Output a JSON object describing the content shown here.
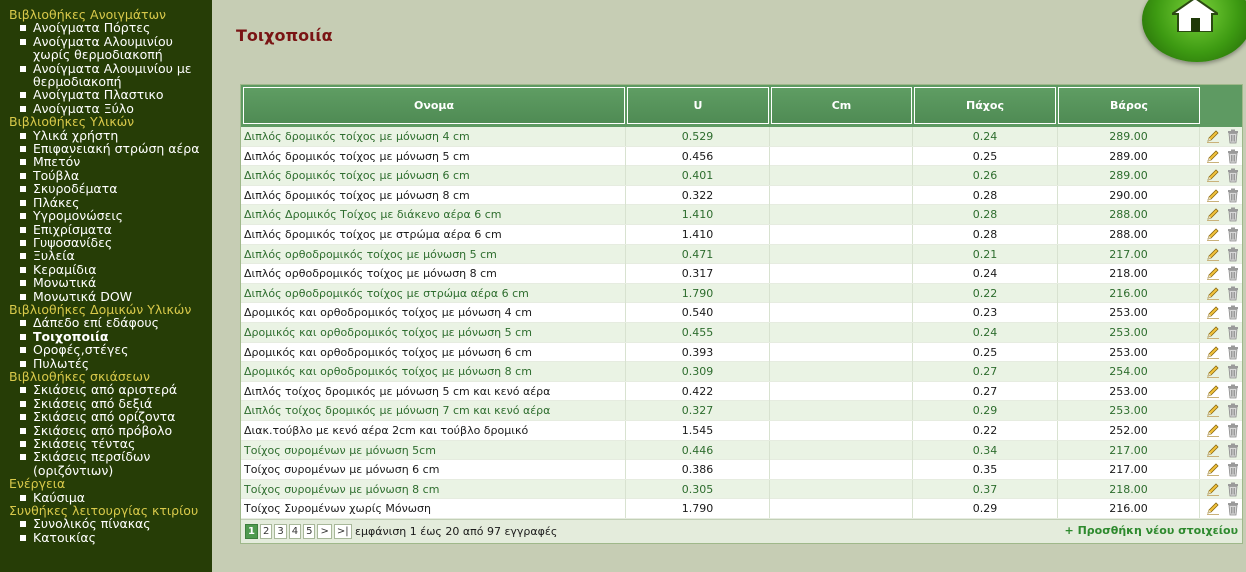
{
  "sidebar": {
    "s0": "Βιβλιοθήκες Ανοιγμάτων",
    "s0_items": [
      "Ανοίγματα Πόρτες",
      "Ανοίγματα Αλουμινίου χωρίς θερμοδιακοπή",
      "Ανοίγματα Αλουμινίου με θερμοδιακοπή",
      "Ανοίγματα Πλαστικο",
      "Ανοίγματα Ξύλο"
    ],
    "s1": "Βιβλιοθήκες Υλικών",
    "s1_items": [
      "Υλικά χρήστη",
      "Επιφανειακή στρώση αέρα",
      "Μπετόν",
      "Τούβλα",
      "Σκυροδέματα",
      "Πλάκες",
      "Υγρομονώσεις",
      "Επιχρίσματα",
      "Γυψοσανίδες",
      "Ξυλεία",
      "Κεραμίδια",
      "Μονωτικά",
      "Μονωτικά DOW"
    ],
    "s2": "Βιβλιοθήκες Δομικών Υλικών",
    "s2_items": [
      "Δάπεδο επί εδάφους",
      "Τοιχοποιία",
      "Οροφές,στέγες",
      "Πυλωτές"
    ],
    "s3": "Βιβλιοθήκες σκιάσεων",
    "s3_items": [
      "Σκιάσεις από αριστερά",
      "Σκιάσεις από δεξιά",
      "Σκιάσεις από ορίζοντα",
      "Σκιάσεις από πρόβολο",
      "Σκιάσεις τέντας",
      "Σκιάσεις περσίδων (οριζόντιων)"
    ],
    "s4": "Ενέργεια",
    "s4_items": [
      "Καύσιμα"
    ],
    "s5": "Συνθήκες λειτουργίας κτιρίου",
    "s5_items": [
      "Συνολικός πίνακας",
      "Κατοικίας"
    ]
  },
  "page": {
    "title": "Τοιχοποιία"
  },
  "grid": {
    "headers": {
      "name": "Ονομα",
      "u": "U",
      "cm": "Cm",
      "pax": "Πάχος",
      "var": "Βάρος"
    },
    "rows": [
      [
        "Διπλός δρομικός τοίχος με μόνωση 4 cm",
        "0.529",
        "",
        "0.24",
        "289.00"
      ],
      [
        "Διπλός δρομικός τοίχος με μόνωση 5 cm",
        "0.456",
        "",
        "0.25",
        "289.00"
      ],
      [
        "Διπλός δρομικός τοίχος με μόνωση 6 cm",
        "0.401",
        "",
        "0.26",
        "289.00"
      ],
      [
        "Διπλός δρομικός τοίχος με μόνωση 8 cm",
        "0.322",
        "",
        "0.28",
        "290.00"
      ],
      [
        "Διπλός Δρομικός Τοίχος με διάκενο αέρα 6 cm",
        "1.410",
        "",
        "0.28",
        "288.00"
      ],
      [
        "Διπλός δρομικός τοίχος με στρώμα αέρα 6 cm",
        "1.410",
        "",
        "0.28",
        "288.00"
      ],
      [
        "Διπλός ορθοδρομικός τοίχος με μόνωση 5 cm",
        "0.471",
        "",
        "0.21",
        "217.00"
      ],
      [
        "Διπλός ορθοδρομικός τοίχος με μόνωση 8 cm",
        "0.317",
        "",
        "0.24",
        "218.00"
      ],
      [
        "Διπλός ορθοδρομικός τοίχος με στρώμα αέρα 6 cm",
        "1.790",
        "",
        "0.22",
        "216.00"
      ],
      [
        "Δρομικός και ορθοδρομικός τοίχος με μόνωση 4 cm",
        "0.540",
        "",
        "0.23",
        "253.00"
      ],
      [
        "Δρομικός και ορθοδρομικός τοίχος με μόνωση 5 cm",
        "0.455",
        "",
        "0.24",
        "253.00"
      ],
      [
        "Δρομικός και ορθοδρομικός τοίχος με μόνωση 6 cm",
        "0.393",
        "",
        "0.25",
        "253.00"
      ],
      [
        "Δρομικός και ορθοδρομικός τοίχος με μόνωση 8 cm",
        "0.309",
        "",
        "0.27",
        "254.00"
      ],
      [
        "Διπλός τοίχος δρομικός με μόνωση 5 cm και κενό αέρα",
        "0.422",
        "",
        "0.27",
        "253.00"
      ],
      [
        "Διπλός τοίχος δρομικός με μόνωση 7 cm και κενό αέρα",
        "0.327",
        "",
        "0.29",
        "253.00"
      ],
      [
        "Διακ.τούβλο με κενό αέρα 2cm και τούβλο δρομικό",
        "1.545",
        "",
        "0.22",
        "252.00"
      ],
      [
        "Τοίχος συρομένων με μόνωση 5cm",
        "0.446",
        "",
        "0.34",
        "217.00"
      ],
      [
        "Τοίχος συρομένων με μόνωση 6 cm",
        "0.386",
        "",
        "0.35",
        "217.00"
      ],
      [
        "Τοίχος συρομένων με μόνωση 8 cm",
        "0.305",
        "",
        "0.37",
        "218.00"
      ],
      [
        "Τοίχος Συρομένων χωρίς Μόνωση",
        "1.790",
        "",
        "0.29",
        "216.00"
      ]
    ]
  },
  "footer": {
    "pages": [
      "1",
      "2",
      "3",
      "4",
      "5",
      ">",
      ">|"
    ],
    "info": "εμφάνιση 1 έως 20 από 97 εγγραφές",
    "add": "+ Προσθήκη νέου στοιχείου"
  },
  "icons": {
    "edit": "pencil-icon",
    "delete": "trash-icon",
    "home": "home-icon"
  }
}
